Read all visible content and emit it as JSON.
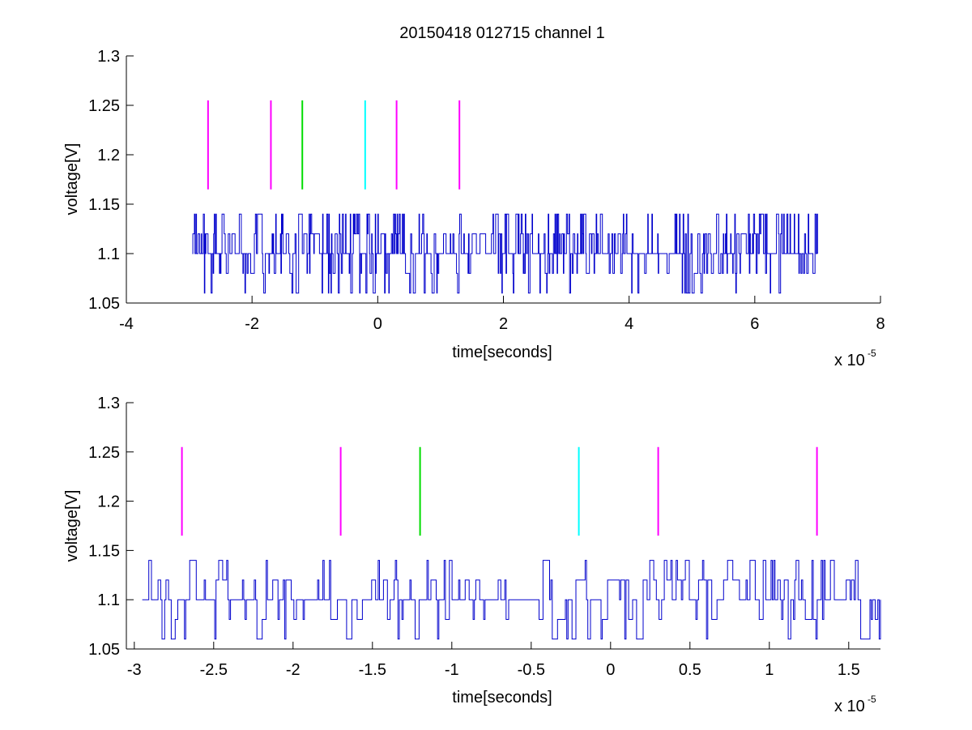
{
  "figure": {
    "title": "20150418 012715 channel 1"
  },
  "chart_data": [
    {
      "type": "line",
      "xlabel": "time[seconds]",
      "ylabel": "voltage[V]",
      "x_exponent_label": "x 10",
      "x_exponent_sup": "-5",
      "xlim": [
        -4,
        8
      ],
      "ylim": [
        1.05,
        1.3
      ],
      "xticks": [
        -4,
        -2,
        0,
        2,
        4,
        6,
        8
      ],
      "xtick_labels": [
        "-4",
        "-2",
        "0",
        "2",
        "4",
        "6",
        "8"
      ],
      "yticks": [
        1.05,
        1.1,
        1.15,
        1.2,
        1.25,
        1.3
      ],
      "ytick_labels": [
        "1.05",
        "1.1",
        "1.15",
        "1.2",
        "1.25",
        "1.3"
      ],
      "grid": false,
      "series": [
        {
          "color": "#0000cc",
          "x_range": [
            -2.95,
            7.0
          ],
          "baseline": 1.1,
          "levels": [
            1.06,
            1.08,
            1.1,
            1.12,
            1.14
          ],
          "samples": 1200
        }
      ],
      "markers": [
        {
          "x": -2.7,
          "color": "#ff00ff",
          "y_range": [
            1.165,
            1.255
          ]
        },
        {
          "x": -1.7,
          "color": "#ff00ff",
          "y_range": [
            1.165,
            1.255
          ]
        },
        {
          "x": -1.2,
          "color": "#00dd00",
          "y_range": [
            1.165,
            1.255
          ]
        },
        {
          "x": -0.2,
          "color": "#00ffff",
          "y_range": [
            1.165,
            1.255
          ]
        },
        {
          "x": 0.3,
          "color": "#ff00ff",
          "y_range": [
            1.165,
            1.255
          ]
        },
        {
          "x": 1.3,
          "color": "#ff00ff",
          "y_range": [
            1.165,
            1.255
          ]
        }
      ]
    },
    {
      "type": "line",
      "xlabel": "time[seconds]",
      "ylabel": "voltage[V]",
      "x_exponent_label": "x 10",
      "x_exponent_sup": "-5",
      "xlim": [
        -3.05,
        1.7
      ],
      "ylim": [
        1.05,
        1.3
      ],
      "xticks": [
        -3,
        -2.5,
        -2,
        -1.5,
        -1,
        -0.5,
        0,
        0.5,
        1,
        1.5
      ],
      "xtick_labels": [
        "-3",
        "-2.5",
        "-2",
        "-1.5",
        "-1",
        "-0.5",
        "0",
        "0.5",
        "1",
        "1.5"
      ],
      "yticks": [
        1.05,
        1.1,
        1.15,
        1.2,
        1.25,
        1.3
      ],
      "ytick_labels": [
        "1.05",
        "1.1",
        "1.15",
        "1.2",
        "1.25",
        "1.3"
      ],
      "grid": false,
      "series": [
        {
          "color": "#0000cc",
          "x_range": [
            -2.95,
            1.7
          ],
          "baseline": 1.1,
          "levels": [
            1.06,
            1.08,
            1.1,
            1.12,
            1.14
          ],
          "samples": 560
        }
      ],
      "markers": [
        {
          "x": -2.7,
          "color": "#ff00ff",
          "y_range": [
            1.165,
            1.255
          ]
        },
        {
          "x": -1.7,
          "color": "#ff00ff",
          "y_range": [
            1.165,
            1.255
          ]
        },
        {
          "x": -1.2,
          "color": "#00dd00",
          "y_range": [
            1.165,
            1.255
          ]
        },
        {
          "x": -0.2,
          "color": "#00ffff",
          "y_range": [
            1.165,
            1.255
          ]
        },
        {
          "x": 0.3,
          "color": "#ff00ff",
          "y_range": [
            1.165,
            1.255
          ]
        },
        {
          "x": 1.3,
          "color": "#ff00ff",
          "y_range": [
            1.165,
            1.255
          ]
        }
      ]
    }
  ]
}
